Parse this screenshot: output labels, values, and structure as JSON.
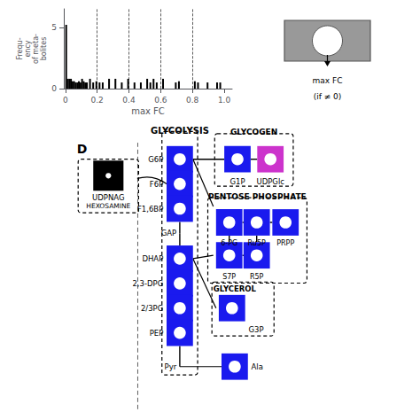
{
  "chart_data": [
    {
      "type": "bar",
      "x": [
        0.005,
        0.015,
        0.025,
        0.035,
        0.045,
        0.055,
        0.065,
        0.075,
        0.085,
        0.095,
        0.105,
        0.115,
        0.125,
        0.135,
        0.155,
        0.175,
        0.195,
        0.215,
        0.235,
        0.275,
        0.315,
        0.355,
        0.395,
        0.435,
        0.475,
        0.515,
        0.535,
        0.555,
        0.575,
        0.615,
        0.695,
        0.715,
        0.815,
        0.835,
        0.895,
        0.955,
        0.975
      ],
      "values": [
        5.2,
        0.8,
        0.8,
        0.8,
        0.6,
        0.6,
        0.5,
        0.5,
        0.6,
        0.5,
        0.8,
        0.6,
        0.5,
        0.5,
        0.8,
        0.5,
        0.6,
        0.5,
        0.5,
        0.8,
        0.8,
        0.5,
        0.8,
        0.5,
        0.5,
        0.8,
        0.5,
        0.8,
        0.5,
        0.8,
        0.5,
        0.6,
        0.6,
        0.5,
        0.5,
        0.5,
        0.5
      ],
      "color": "#000000",
      "xlabel": "max FC",
      "ylabel": "Frequ-\nency\nof meta-\nbolites",
      "xlim": [
        -0.01,
        1.05
      ],
      "ylim": [
        0,
        6.5
      ],
      "xticks": [
        0,
        0.2,
        0.4,
        0.6,
        0.8,
        {
          "value": 1.0,
          "label": "1.0"
        }
      ],
      "yticks": [
        0,
        5
      ],
      "vlines": [
        0.2,
        0.4,
        0.6,
        0.8
      ],
      "grid": false
    },
    {
      "type": "diagram",
      "annotations": [
        "G6P",
        "F6P",
        "F1,6BP",
        "GAP",
        "DHAP",
        "2,3-DPG",
        "2/3PG",
        "PEP",
        "Pyr",
        "G1P",
        "UDPGlc",
        "GLYCOGEN",
        "6-PG",
        "Ru5P",
        "PRPP",
        "S7P",
        "R5P",
        "PENTOSE PHOSPHATE",
        "G3P",
        "GLYCEROL",
        "Ala",
        "UDPNAG",
        "HEXOSAMINE",
        "GLYCOLYSIS",
        "D",
        "max FC",
        "(if ≠ 0)"
      ],
      "colors": [
        "#1a1aee",
        "#1a1aee",
        "#1a1aee",
        null,
        "#1a1aee",
        "#1a1aee",
        "#1a1aee",
        "#1a1aee",
        null,
        "#1a1aee",
        "#cc33cc",
        "#1a1aee",
        "#1a1aee",
        "#1a1aee",
        "#1a1aee",
        "#1a1aee",
        "#1a1aee",
        "#1a1aee",
        "#000000",
        "#999999"
      ]
    }
  ]
}
